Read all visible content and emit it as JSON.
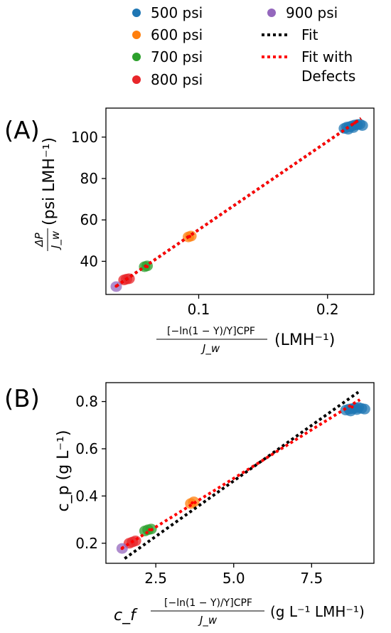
{
  "legend": {
    "items": [
      {
        "label": "500 psi",
        "kind": "marker",
        "color": "#1f77b4"
      },
      {
        "label": "600 psi",
        "kind": "marker",
        "color": "#ff7f0e"
      },
      {
        "label": "700 psi",
        "kind": "marker",
        "color": "#2ca02c"
      },
      {
        "label": "800 psi",
        "kind": "marker",
        "color": "#e8262a"
      },
      {
        "label": "900 psi",
        "kind": "marker",
        "color": "#9467bd"
      },
      {
        "label": "Fit",
        "kind": "line",
        "color": "#000000"
      },
      {
        "label": "Fit with Defects",
        "lines": [
          "Fit with",
          "Defects"
        ],
        "kind": "line",
        "color": "#ff0000"
      }
    ]
  },
  "chart_data": [
    {
      "panel_label": "(A)",
      "type": "scatter",
      "xlabel_num": "[−ln(1 − Y)/Y]CPF",
      "xlabel_den": "J_w",
      "xlabel_unit": "(LMH⁻¹)",
      "ylabel_num": "ΔP",
      "ylabel_den": "J_w",
      "ylabel_unit": "(psi LMH⁻¹)",
      "xlim": [
        0.028,
        0.236
      ],
      "ylim": [
        24,
        114
      ],
      "xticks": [
        0.1,
        0.2
      ],
      "xtick_labels": [
        "0.1",
        "0.2"
      ],
      "yticks": [
        40,
        60,
        80,
        100
      ],
      "ytick_labels": [
        "40",
        "60",
        "80",
        "100"
      ],
      "series": [
        {
          "name": "500 psi",
          "color": "#1f77b4",
          "x": [
            0.213,
            0.215,
            0.217,
            0.219,
            0.221,
            0.223,
            0.225,
            0.227,
            0.216,
            0.22
          ],
          "y": [
            104.2,
            104.8,
            105.0,
            105.4,
            105.8,
            106.0,
            106.2,
            105.6,
            103.8,
            104.6
          ]
        },
        {
          "name": "600 psi",
          "color": "#ff7f0e",
          "x": [
            0.092,
            0.094
          ],
          "y": [
            51.8,
            52.2
          ]
        },
        {
          "name": "700 psi",
          "color": "#2ca02c",
          "x": [
            0.058,
            0.06
          ],
          "y": [
            37.4,
            37.8
          ]
        },
        {
          "name": "800 psi",
          "color": "#e8262a",
          "x": [
            0.042,
            0.044,
            0.046
          ],
          "y": [
            31.0,
            31.4,
            31.6
          ]
        },
        {
          "name": "900 psi",
          "color": "#9467bd",
          "x": [
            0.036
          ],
          "y": [
            27.8
          ]
        }
      ],
      "fits": [
        {
          "name": "Fit",
          "color": "#000000",
          "x": [
            0.036,
            0.226
          ],
          "y": [
            28.0,
            109.0
          ]
        },
        {
          "name": "Fit with Defects",
          "color": "#ff0000",
          "x": [
            0.036,
            0.226
          ],
          "y": [
            28.0,
            109.0
          ]
        }
      ],
      "fit_points": [
        {
          "x": 0.036,
          "y": 28.0
        },
        {
          "x": 0.06,
          "y": 37.4
        },
        {
          "x": 0.093,
          "y": 52.0
        },
        {
          "x": 0.221,
          "y": 106.8
        }
      ]
    },
    {
      "panel_label": "(B)",
      "type": "scatter",
      "xlabel_prefix": "c_f",
      "xlabel_num": "[−ln(1 − Y)/Y]CPF",
      "xlabel_den": "J_w",
      "xlabel_unit": "(g L⁻¹ LMH⁻¹)",
      "ylabel": "c_p (g L⁻¹)",
      "xlim": [
        0.9,
        9.5
      ],
      "ylim": [
        0.115,
        0.88
      ],
      "xticks": [
        2.5,
        5.0,
        7.5
      ],
      "xtick_labels": [
        "2.5",
        "5.0",
        "7.5"
      ],
      "yticks": [
        0.2,
        0.4,
        0.6,
        0.8
      ],
      "ytick_labels": [
        "0.2",
        "0.4",
        "0.6",
        "0.8"
      ],
      "series": [
        {
          "name": "500 psi",
          "color": "#1f77b4",
          "x": [
            8.6,
            8.7,
            8.8,
            8.9,
            9.0,
            9.1,
            9.2,
            8.75,
            8.95
          ],
          "y": [
            0.764,
            0.768,
            0.77,
            0.773,
            0.775,
            0.771,
            0.768,
            0.76,
            0.766
          ]
        },
        {
          "name": "600 psi",
          "color": "#ff7f0e",
          "x": [
            3.62,
            3.72
          ],
          "y": [
            0.368,
            0.375
          ]
        },
        {
          "name": "700 psi",
          "color": "#2ca02c",
          "x": [
            2.15,
            2.25,
            2.35
          ],
          "y": [
            0.252,
            0.257,
            0.26
          ]
        },
        {
          "name": "800 psi",
          "color": "#e8262a",
          "x": [
            1.65,
            1.75,
            1.85
          ],
          "y": [
            0.2,
            0.205,
            0.21
          ]
        },
        {
          "name": "900 psi",
          "color": "#9467bd",
          "x": [
            1.42
          ],
          "y": [
            0.178
          ]
        }
      ],
      "fits": [
        {
          "name": "Fit",
          "color": "#000000",
          "x": [
            1.5,
            9.0
          ],
          "y": [
            0.135,
            0.84
          ]
        },
        {
          "name": "Fit with Defects",
          "color": "#ff0000",
          "x": [
            1.4,
            9.05
          ],
          "y": [
            0.178,
            0.808
          ]
        }
      ],
      "fit_points": [
        {
          "x": 1.42,
          "y": 0.178
        },
        {
          "x": 2.3,
          "y": 0.257
        },
        {
          "x": 3.67,
          "y": 0.371
        },
        {
          "x": 8.8,
          "y": 0.777
        }
      ]
    }
  ]
}
